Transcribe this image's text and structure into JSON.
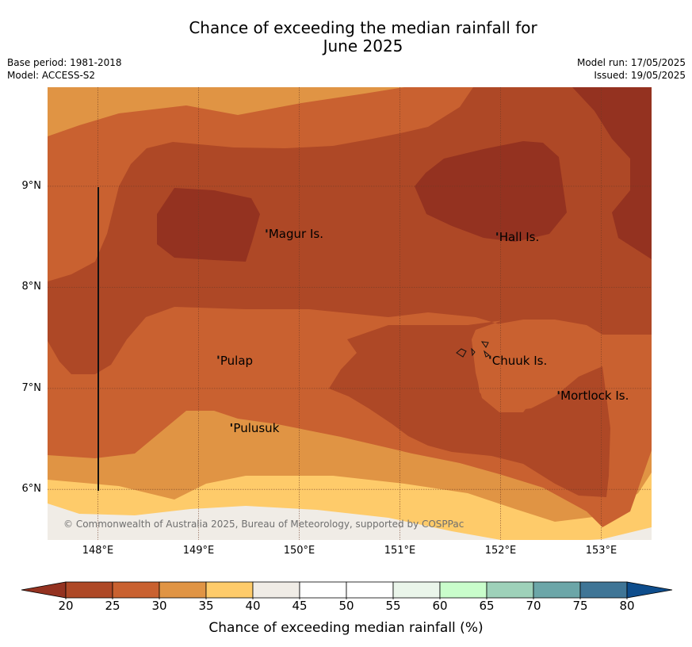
{
  "title": {
    "line1": "Chance of exceeding the median rainfall for",
    "line2": "June 2025"
  },
  "meta": {
    "base_period": "Base period: 1981-2018",
    "model": "Model: ACCESS-S2",
    "model_run": "Model run: 17/05/2025",
    "issued": "Issued: 19/05/2025"
  },
  "axes": {
    "latitudes": [
      {
        "value": 9,
        "label": "9°N"
      },
      {
        "value": 8,
        "label": "8°N"
      },
      {
        "value": 7,
        "label": "7°N"
      },
      {
        "value": 6,
        "label": "6°N"
      }
    ],
    "longitudes": [
      {
        "value": 148,
        "label": "148°E"
      },
      {
        "value": 149,
        "label": "149°E"
      },
      {
        "value": 150,
        "label": "150°E"
      },
      {
        "value": 151,
        "label": "151°E"
      },
      {
        "value": 152,
        "label": "152°E"
      },
      {
        "value": 153,
        "label": "153°E"
      }
    ],
    "lon_range": [
      147.5,
      153.5
    ],
    "lat_range": [
      5.5,
      9.98
    ]
  },
  "places": [
    {
      "name": "Magur Is.",
      "lon": 149.68,
      "lat": 8.55
    },
    {
      "name": "Hall Is.",
      "lon": 151.97,
      "lat": 8.52
    },
    {
      "name": "Pulap",
      "lon": 149.2,
      "lat": 7.3
    },
    {
      "name": "Chuuk Is.",
      "lon": 151.9,
      "lat": 7.3
    },
    {
      "name": "Mortlock Is.",
      "lon": 152.58,
      "lat": 6.95
    },
    {
      "name": "Pulusuk",
      "lon": 149.33,
      "lat": 6.63
    }
  ],
  "copyright": "© Commonwealth of Australia 2025, Bureau of Meteorology, supported by COSPPac",
  "colorbar": {
    "label": "Chance of exceeding median rainfall (%)",
    "ticks": [
      "20",
      "25",
      "30",
      "35",
      "40",
      "45",
      "50",
      "55",
      "60",
      "65",
      "70",
      "75",
      "80"
    ],
    "under_color": "#943220",
    "over_color": "#0e4d8c",
    "colors": [
      "#ae4826",
      "#c96130",
      "#e09444",
      "#fecb6a",
      "#f0ece6",
      "#ffffff",
      "#ffffff",
      "#eaf5ea",
      "#c9fdcb",
      "#9ed1b9",
      "#6ca6a8",
      "#3f7596"
    ]
  },
  "rainfall_classes": {
    "20-25": "#ae4826",
    "25-30": "#c96130",
    "30-35": "#e09444",
    "35-40": "#fecb6a",
    "40-45": "#f0ece6",
    "<20": "#943220"
  }
}
